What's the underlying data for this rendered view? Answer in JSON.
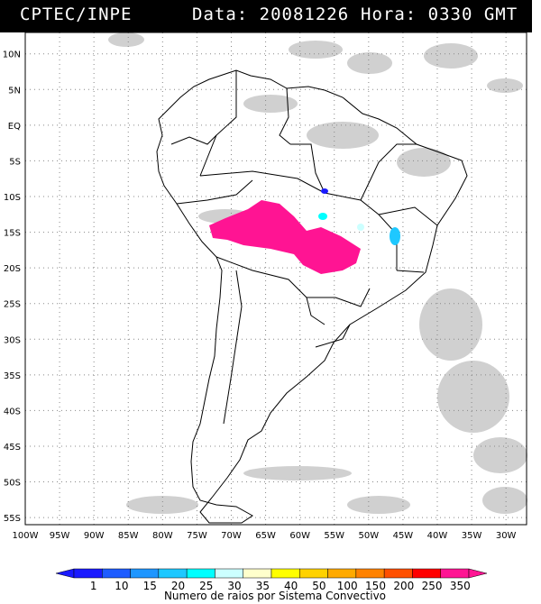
{
  "header": {
    "left": "CPTEC/INPE",
    "data_label": "Data: 20081226",
    "hora_label": "Hora: 0330 GMT"
  },
  "map": {
    "lon_min": -100,
    "lon_max": -27,
    "lat_max": 13,
    "lat_min": -56,
    "lat_labels": [
      "10N",
      "5N",
      "EQ",
      "5S",
      "10S",
      "15S",
      "20S",
      "25S",
      "30S",
      "35S",
      "40S",
      "45S",
      "50S",
      "55S"
    ],
    "lat_values": [
      10,
      5,
      0,
      -5,
      -10,
      -15,
      -20,
      -25,
      -30,
      -35,
      -40,
      -45,
      -50,
      -55
    ],
    "lon_labels": [
      "100W",
      "95W",
      "90W",
      "85W",
      "80W",
      "75W",
      "70W",
      "65W",
      "60W",
      "55W",
      "50W",
      "45W",
      "40W",
      "35W",
      "30W"
    ],
    "lon_values": [
      -100,
      -95,
      -90,
      -85,
      -80,
      -75,
      -70,
      -65,
      -60,
      -55,
      -50,
      -45,
      -40,
      -35,
      -30
    ]
  },
  "legend": {
    "values": [
      "1",
      "10",
      "15",
      "20",
      "25",
      "30",
      "35",
      "40",
      "50",
      "100",
      "150",
      "200",
      "250",
      "350"
    ],
    "colors": [
      "#1a1aff",
      "#1e5cff",
      "#1e96ff",
      "#1ec8ff",
      "#00ffff",
      "#ccffff",
      "#ffffcc",
      "#ffff00",
      "#ffd200",
      "#ffaa00",
      "#ff8200",
      "#ff5000",
      "#ff0000",
      "#ff1493"
    ],
    "title": "Numero de raios por Sistema Convectivo"
  }
}
